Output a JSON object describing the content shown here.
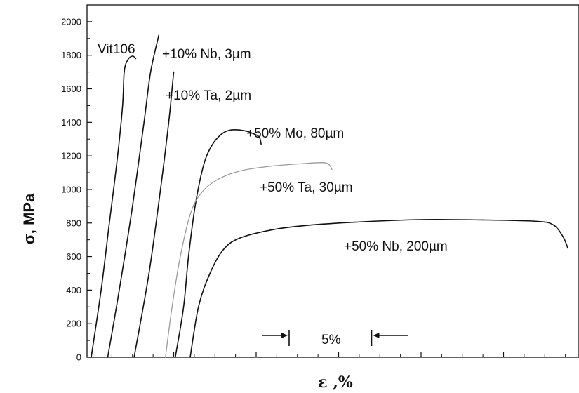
{
  "chart_data": {
    "type": "line",
    "ylabel": "σ, MPa",
    "xlabel": "ε ,%",
    "ylim": [
      0,
      2100
    ],
    "yticks": [
      0,
      200,
      400,
      600,
      800,
      1000,
      1200,
      1400,
      1600,
      1800,
      2000
    ],
    "x_scale_bar_label": "5%",
    "grid": false,
    "series": [
      {
        "name": "Vit106",
        "color": "#111111",
        "points": [
          [
            0.0,
            0
          ],
          [
            0.6,
            400
          ],
          [
            1.1,
            800
          ],
          [
            1.6,
            1200
          ],
          [
            1.9,
            1500
          ],
          [
            2.0,
            1700
          ],
          [
            2.2,
            1770
          ],
          [
            2.5,
            1795
          ],
          [
            2.7,
            1780
          ]
        ]
      },
      {
        "name": "+10% Nb, 3µm",
        "color": "#111111",
        "points": [
          [
            1.0,
            0
          ],
          [
            1.7,
            400
          ],
          [
            2.5,
            900
          ],
          [
            3.2,
            1400
          ],
          [
            3.6,
            1700
          ],
          [
            4.1,
            1920
          ]
        ]
      },
      {
        "name": "+10% Ta, 2µm",
        "color": "#111111",
        "points": [
          [
            2.6,
            0
          ],
          [
            3.5,
            500
          ],
          [
            4.2,
            1000
          ],
          [
            4.7,
            1400
          ],
          [
            4.9,
            1600
          ],
          [
            5.0,
            1700
          ]
        ]
      },
      {
        "name": "+50% Mo, 80µm",
        "color": "#111111",
        "points": [
          [
            5.1,
            0
          ],
          [
            5.6,
            300
          ],
          [
            5.9,
            600
          ],
          [
            6.3,
            900
          ],
          [
            6.8,
            1140
          ],
          [
            7.3,
            1260
          ],
          [
            7.9,
            1330
          ],
          [
            8.5,
            1355
          ],
          [
            9.3,
            1350
          ],
          [
            9.9,
            1330
          ],
          [
            10.2,
            1310
          ],
          [
            10.3,
            1270
          ]
        ]
      },
      {
        "name": "+50% Ta, 30µm",
        "color": "#9a9a9a",
        "points": [
          [
            4.5,
            0
          ],
          [
            4.9,
            300
          ],
          [
            5.4,
            600
          ],
          [
            6.0,
            850
          ],
          [
            6.6,
            970
          ],
          [
            7.5,
            1050
          ],
          [
            9.0,
            1110
          ],
          [
            11.0,
            1140
          ],
          [
            13.0,
            1155
          ],
          [
            14.0,
            1160
          ],
          [
            14.4,
            1150
          ],
          [
            14.6,
            1120
          ]
        ]
      },
      {
        "name": "+50% Nb, 200µm",
        "color": "#111111",
        "points": [
          [
            6.0,
            0
          ],
          [
            6.5,
            300
          ],
          [
            7.2,
            500
          ],
          [
            8.0,
            640
          ],
          [
            9.0,
            710
          ],
          [
            11.0,
            760
          ],
          [
            13.0,
            785
          ],
          [
            16.0,
            805
          ],
          [
            20.0,
            820
          ],
          [
            24.0,
            818
          ],
          [
            27.0,
            810
          ],
          [
            28.0,
            790
          ],
          [
            28.6,
            720
          ],
          [
            28.9,
            650
          ]
        ]
      }
    ]
  }
}
